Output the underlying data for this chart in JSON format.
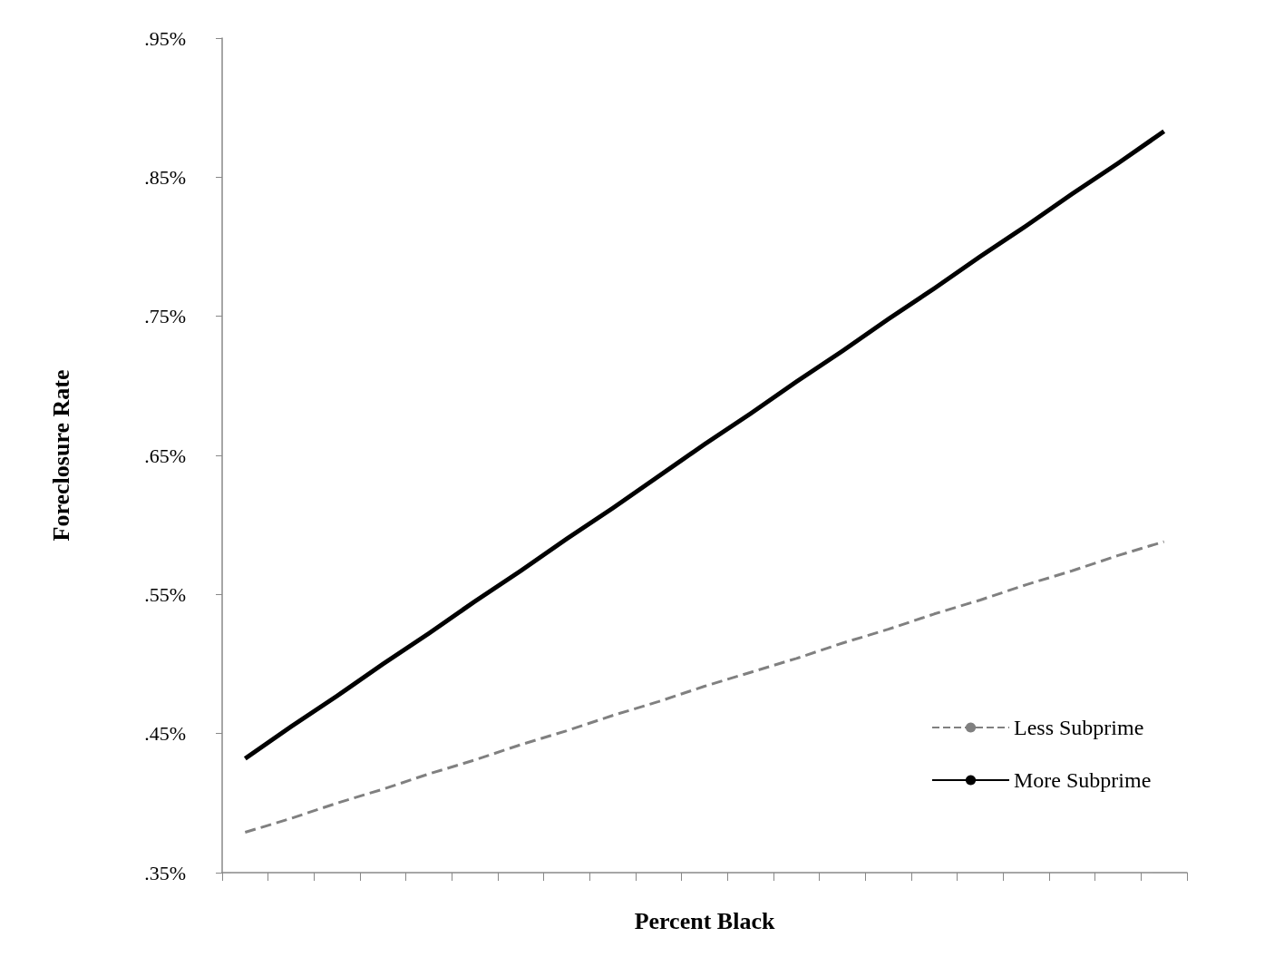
{
  "chart_data": {
    "type": "line",
    "xlabel": "Percent Black",
    "ylabel": "Foreclosure Rate",
    "categories": [
      null,
      null,
      null,
      null,
      null,
      null,
      null,
      null,
      null,
      null,
      null,
      null,
      null,
      null,
      null,
      null,
      null,
      null,
      null,
      null,
      null
    ],
    "series": [
      {
        "name": "Less Subprime",
        "color": "#808080",
        "line_style": "dashed",
        "values": [
          0.379,
          0.389,
          0.4,
          0.41,
          0.421,
          0.431,
          0.442,
          0.452,
          0.463,
          0.473,
          0.484,
          0.494,
          0.504,
          0.515,
          0.525,
          0.536,
          0.546,
          0.557,
          0.567,
          0.578,
          0.588
        ]
      },
      {
        "name": "More Subprime",
        "color": "#000000",
        "line_style": "solid",
        "values": [
          0.432,
          0.455,
          0.477,
          0.5,
          0.522,
          0.545,
          0.567,
          0.59,
          0.612,
          0.635,
          0.658,
          0.68,
          0.703,
          0.725,
          0.748,
          0.77,
          0.793,
          0.815,
          0.838,
          0.86,
          0.883
        ]
      }
    ],
    "ylim": [
      0.35,
      0.95
    ],
    "yticks": [
      {
        "value": 0.35,
        "label": ".35%"
      },
      {
        "value": 0.45,
        "label": ".45%"
      },
      {
        "value": 0.55,
        "label": ".55%"
      },
      {
        "value": 0.65,
        "label": ".65%"
      },
      {
        "value": 0.75,
        "label": ".75%"
      },
      {
        "value": 0.85,
        "label": ".85%"
      },
      {
        "value": 0.95,
        "label": ".95%"
      }
    ],
    "grid": false,
    "legend": "bottom right",
    "marker": "none"
  }
}
